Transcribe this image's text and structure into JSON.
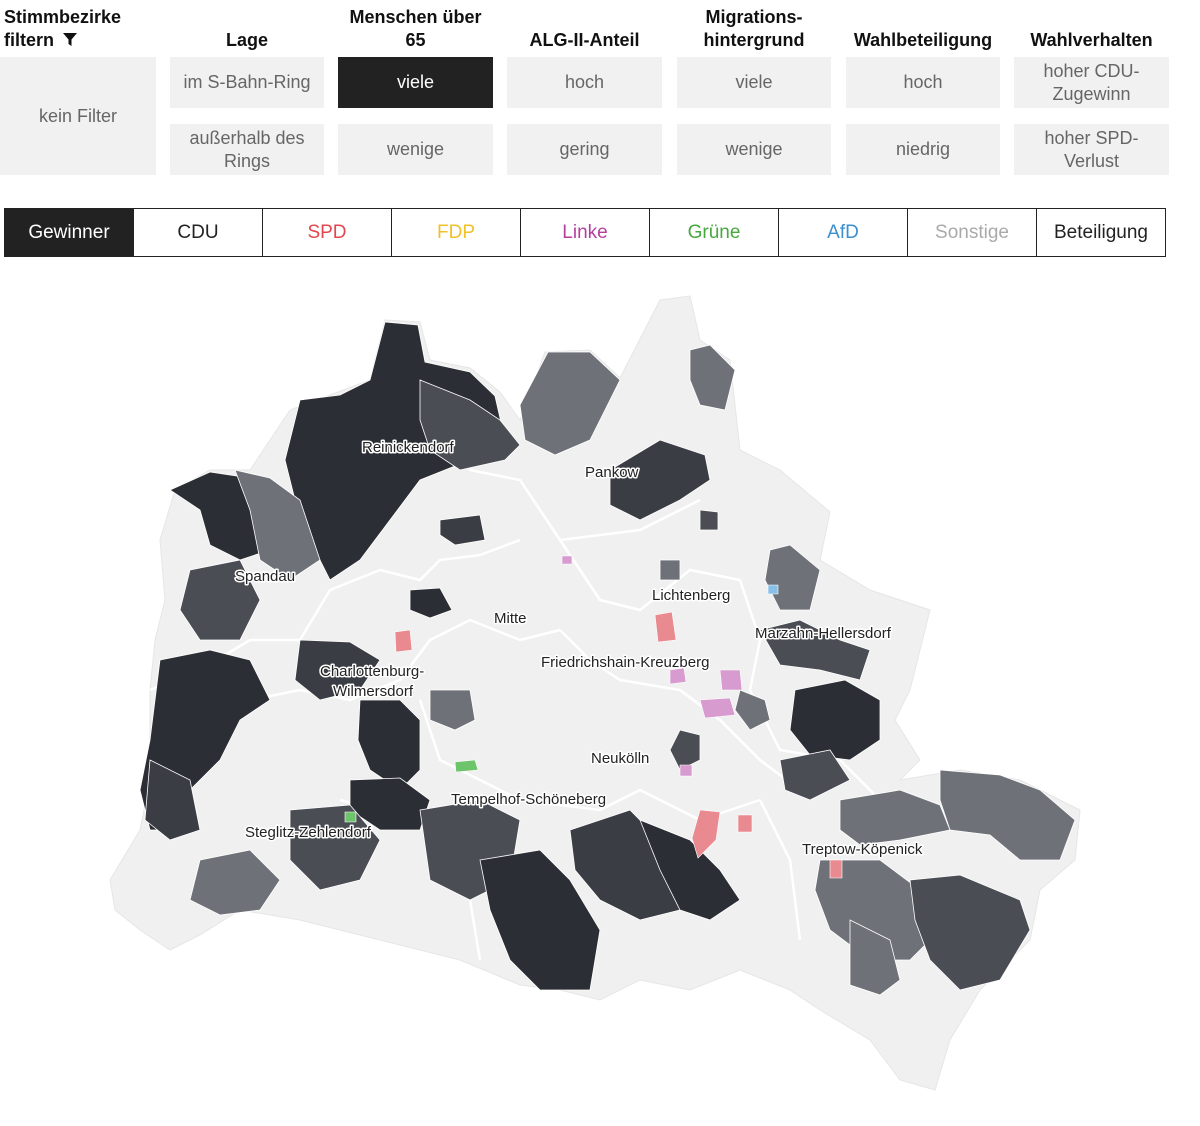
{
  "filters": {
    "title": "Stimmbezirke filtern",
    "reset": "kein Filter",
    "groups": [
      {
        "label": "Lage",
        "options": [
          "im S-Bahn-Ring",
          "außerhalb des Rings"
        ]
      },
      {
        "label": "Menschen über 65",
        "options": [
          "viele",
          "wenige"
        ]
      },
      {
        "label": "ALG-II-Anteil",
        "options": [
          "hoch",
          "gering"
        ]
      },
      {
        "label": "Migrations-hintergrund",
        "options": [
          "viele",
          "wenige"
        ]
      },
      {
        "label": "Wahlbeteiligung",
        "options": [
          "hoch",
          "niedrig"
        ]
      },
      {
        "label": "Wahlverhalten",
        "options": [
          "hoher CDU-Zugewinn",
          "hoher SPD-Verlust"
        ]
      }
    ],
    "active": "Menschen über 65: viele"
  },
  "tabs": [
    {
      "label": "Gewinner",
      "color": "#ffffff"
    },
    {
      "label": "CDU",
      "color": "#222222"
    },
    {
      "label": "SPD",
      "color": "#e3464f"
    },
    {
      "label": "FDP",
      "color": "#f2c029"
    },
    {
      "label": "Linke",
      "color": "#b43fa0"
    },
    {
      "label": "Grüne",
      "color": "#46a83f"
    },
    {
      "label": "AfD",
      "color": "#3a8fd1"
    },
    {
      "label": "Sonstige",
      "color": "#aaaaaa"
    },
    {
      "label": "Beteiligung",
      "color": "#222222"
    }
  ],
  "active_tab": "Gewinner",
  "map": {
    "districts": [
      "Reinickendorf",
      "Pankow",
      "Spandau",
      "Mitte",
      "Lichtenberg",
      "Marzahn-Hellersdorf",
      "Friedrichshain-Kreuzberg",
      "Charlottenburg-",
      "Wilmersdorf",
      "Neukölln",
      "Tempelhof-Schöneberg",
      "Steglitz-Zehlendorf",
      "Treptow-Köpenick"
    ],
    "colors": {
      "background": "#f0f0f0",
      "cdu_dark": "#2b2e34",
      "cdu_mid": "#4a4d54",
      "cdu_light": "#6e7178",
      "spd": "#e88a8f",
      "linke": "#d79bd0",
      "gruene": "#6ec46a",
      "afd": "#88c0ea"
    }
  }
}
